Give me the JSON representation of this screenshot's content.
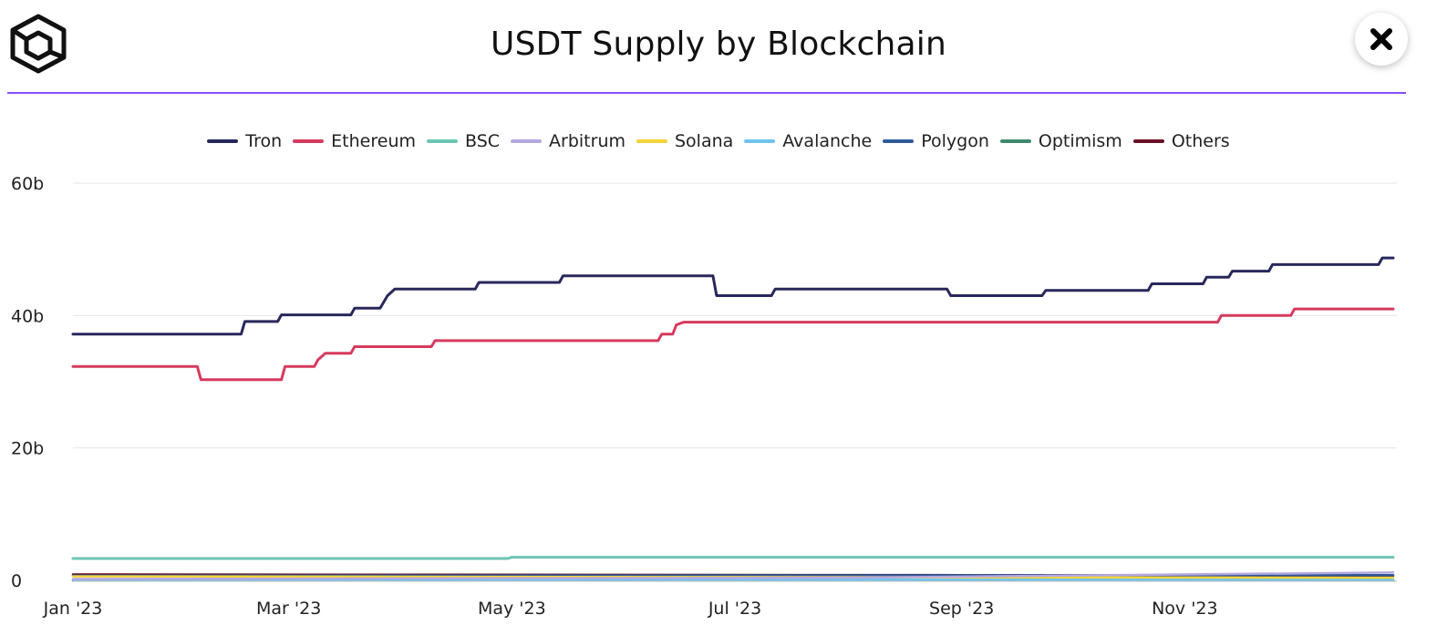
{
  "header": {
    "title": "USDT Supply by Blockchain",
    "logo_icon": "cube-logo-icon",
    "close_icon": "close-icon"
  },
  "colors": {
    "accent_rule": "#8a4dff"
  },
  "chart_data": {
    "type": "line",
    "title": "USDT Supply by Blockchain",
    "xlabel": "",
    "ylabel": "",
    "x_tick_labels": [
      "Jan '23",
      "Mar '23",
      "May '23",
      "Jul '23",
      "Sep '23",
      "Nov '23"
    ],
    "x_tick_dates": [
      "2023-01-01",
      "2023-03-01",
      "2023-05-01",
      "2023-07-01",
      "2023-09-01",
      "2023-11-01"
    ],
    "y_tick_labels": [
      "0",
      "20b",
      "40b",
      "60b"
    ],
    "y_ticks": [
      0,
      20,
      40,
      60
    ],
    "ylim": [
      0,
      60
    ],
    "xlim": [
      "2023-01-01",
      "2023-12-29"
    ],
    "unit": "billions USDT",
    "grid": true,
    "legend_position": "top-center",
    "series": [
      {
        "name": "Tron",
        "color": "#28285c",
        "points": [
          [
            "2023-01-01",
            37.2
          ],
          [
            "2023-02-16",
            37.2
          ],
          [
            "2023-02-17",
            39.1
          ],
          [
            "2023-02-26",
            39.1
          ],
          [
            "2023-02-27",
            40.1
          ],
          [
            "2023-03-18",
            40.1
          ],
          [
            "2023-03-19",
            41.1
          ],
          [
            "2023-03-26",
            41.1
          ],
          [
            "2023-03-28",
            43.0
          ],
          [
            "2023-03-30",
            44.0
          ],
          [
            "2023-04-21",
            44.0
          ],
          [
            "2023-04-22",
            45.0
          ],
          [
            "2023-05-14",
            45.0
          ],
          [
            "2023-05-15",
            46.0
          ],
          [
            "2023-06-25",
            46.0
          ],
          [
            "2023-06-26",
            43.0
          ],
          [
            "2023-07-11",
            43.0
          ],
          [
            "2023-07-12",
            44.0
          ],
          [
            "2023-08-28",
            44.0
          ],
          [
            "2023-08-29",
            43.0
          ],
          [
            "2023-09-23",
            43.0
          ],
          [
            "2023-09-24",
            43.8
          ],
          [
            "2023-10-22",
            43.8
          ],
          [
            "2023-10-23",
            44.8
          ],
          [
            "2023-11-06",
            44.8
          ],
          [
            "2023-11-07",
            45.8
          ],
          [
            "2023-11-13",
            45.8
          ],
          [
            "2023-11-14",
            46.7
          ],
          [
            "2023-11-24",
            46.7
          ],
          [
            "2023-11-25",
            47.7
          ],
          [
            "2023-12-24",
            47.7
          ],
          [
            "2023-12-25",
            48.7
          ],
          [
            "2023-12-28",
            48.7
          ]
        ]
      },
      {
        "name": "Ethereum",
        "color": "#d63a5e",
        "points": [
          [
            "2023-01-01",
            32.3
          ],
          [
            "2023-02-04",
            32.3
          ],
          [
            "2023-02-05",
            30.3
          ],
          [
            "2023-02-27",
            30.3
          ],
          [
            "2023-02-28",
            32.3
          ],
          [
            "2023-03-08",
            32.3
          ],
          [
            "2023-03-09",
            33.3
          ],
          [
            "2023-03-11",
            34.3
          ],
          [
            "2023-03-18",
            34.3
          ],
          [
            "2023-03-19",
            35.3
          ],
          [
            "2023-04-09",
            35.3
          ],
          [
            "2023-04-10",
            36.2
          ],
          [
            "2023-06-10",
            36.2
          ],
          [
            "2023-06-11",
            37.2
          ],
          [
            "2023-06-14",
            37.2
          ],
          [
            "2023-06-15",
            38.6
          ],
          [
            "2023-06-17",
            39.0
          ],
          [
            "2023-11-10",
            39.0
          ],
          [
            "2023-11-11",
            40.0
          ],
          [
            "2023-11-30",
            40.0
          ],
          [
            "2023-12-01",
            41.0
          ],
          [
            "2023-12-28",
            41.0
          ]
        ]
      },
      {
        "name": "BSC",
        "color": "#6cc5b5",
        "points": [
          [
            "2023-01-01",
            3.3
          ],
          [
            "2023-04-30",
            3.3
          ],
          [
            "2023-05-01",
            3.5
          ],
          [
            "2023-12-28",
            3.5
          ]
        ]
      },
      {
        "name": "Arbitrum",
        "color": "#b5a8e0",
        "points": [
          [
            "2023-01-01",
            0.2
          ],
          [
            "2023-08-01",
            0.4
          ],
          [
            "2023-12-28",
            1.2
          ]
        ]
      },
      {
        "name": "Solana",
        "color": "#f2d43a",
        "points": [
          [
            "2023-01-01",
            0.6
          ],
          [
            "2023-07-01",
            0.5
          ],
          [
            "2023-12-28",
            0.4
          ]
        ]
      },
      {
        "name": "Avalanche",
        "color": "#6fc4ee",
        "points": [
          [
            "2023-01-01",
            0.1
          ],
          [
            "2023-12-28",
            0.1
          ]
        ]
      },
      {
        "name": "Polygon",
        "color": "#2e5a9a",
        "points": [
          [
            "2023-01-01",
            0.7
          ],
          [
            "2023-12-28",
            0.8
          ]
        ]
      },
      {
        "name": "Optimism",
        "color": "#3f8a6c",
        "points": [
          [
            "2023-01-01",
            0.0
          ],
          [
            "2023-12-28",
            0.1
          ]
        ]
      },
      {
        "name": "Others",
        "color": "#6a1028",
        "points": [
          [
            "2023-01-01",
            0.9
          ],
          [
            "2023-08-31",
            0.8
          ],
          [
            "2023-12-28",
            0.7
          ]
        ]
      }
    ]
  }
}
